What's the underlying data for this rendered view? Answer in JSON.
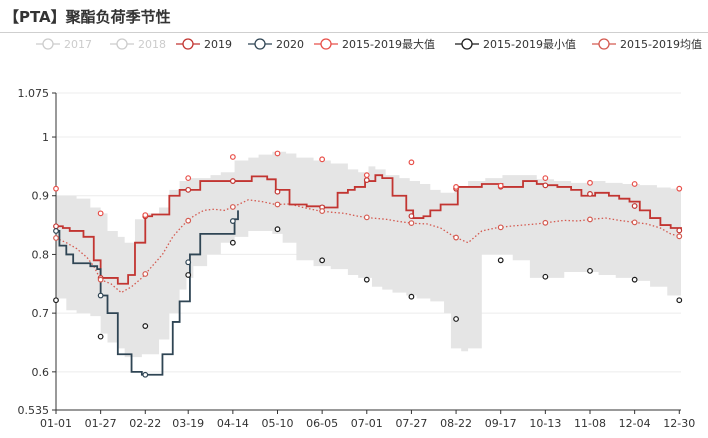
{
  "page_title": "【PTA】聚酯负荷季节性",
  "colors": {
    "c2019": "#c23531",
    "c2020": "#2f4554",
    "max": "#e8504a",
    "min": "#1c1c1c",
    "avg": "#d45a50",
    "band": "#e5e5e5",
    "inactive": "#cccccc"
  },
  "chart_data": {
    "type": "line",
    "title": "【PTA】聚酯负荷季节性",
    "legend_position": "top",
    "ylim": [
      0.535,
      1.075
    ],
    "yticks": [
      0.535,
      0.6,
      0.7,
      0.8,
      0.9,
      1,
      1.075
    ],
    "ytick_labels": [
      "0.535",
      "0.6",
      "0.7",
      "0.8",
      "0.9",
      "1",
      "1.075"
    ],
    "xlim": [
      0,
      364
    ],
    "xticks": [
      0,
      26,
      52,
      77,
      103,
      129,
      155,
      181,
      207,
      233,
      259,
      285,
      311,
      337,
      363
    ],
    "xtick_labels": [
      "01-01",
      "01-27",
      "02-22",
      "03-19",
      "04-14",
      "05-10",
      "06-05",
      "07-01",
      "07-27",
      "08-22",
      "09-17",
      "10-13",
      "11-08",
      "12-04",
      "12-30"
    ],
    "grid": {
      "horizontal": true,
      "vertical": false
    },
    "legend": [
      {
        "name": "2017",
        "active": false
      },
      {
        "name": "2018",
        "active": false
      },
      {
        "name": "2019",
        "active": true
      },
      {
        "name": "2020",
        "active": true
      },
      {
        "name": "2015-2019最大值",
        "active": true
      },
      {
        "name": "2015-2019最小值",
        "active": true
      },
      {
        "name": "2015-2019均值",
        "active": true
      }
    ],
    "series": [
      {
        "name": "2019",
        "kind": "step",
        "x": [
          0,
          4,
          8,
          16,
          22,
          26,
          36,
          42,
          46,
          52,
          56,
          66,
          72,
          80,
          84,
          90,
          96,
          106,
          114,
          123,
          128,
          136,
          146,
          156,
          164,
          170,
          174,
          180,
          186,
          190,
          196,
          204,
          208,
          214,
          218,
          224,
          234,
          248,
          260,
          272,
          280,
          284,
          292,
          300,
          306,
          314,
          322,
          328,
          334,
          340,
          346,
          352,
          358,
          364
        ],
        "values": [
          0.848,
          0.845,
          0.84,
          0.83,
          0.79,
          0.76,
          0.75,
          0.765,
          0.82,
          0.865,
          0.868,
          0.9,
          0.91,
          0.91,
          0.925,
          0.925,
          0.925,
          0.925,
          0.933,
          0.928,
          0.91,
          0.885,
          0.882,
          0.88,
          0.905,
          0.91,
          0.915,
          0.925,
          0.935,
          0.93,
          0.9,
          0.875,
          0.862,
          0.865,
          0.875,
          0.885,
          0.915,
          0.92,
          0.915,
          0.925,
          0.92,
          0.918,
          0.915,
          0.91,
          0.9,
          0.905,
          0.9,
          0.895,
          0.89,
          0.875,
          0.862,
          0.85,
          0.845,
          0.84
        ]
      },
      {
        "name": "2020",
        "kind": "step",
        "x": [
          0,
          2,
          6,
          10,
          16,
          20,
          24,
          26,
          30,
          36,
          44,
          50,
          56,
          62,
          68,
          72,
          78,
          84,
          96,
          104,
          106
        ],
        "values": [
          0.84,
          0.815,
          0.8,
          0.785,
          0.785,
          0.78,
          0.775,
          0.73,
          0.7,
          0.63,
          0.6,
          0.595,
          0.595,
          0.63,
          0.685,
          0.72,
          0.8,
          0.835,
          0.835,
          0.86,
          0.875
        ]
      },
      {
        "name": "2015-2019最大值",
        "kind": "points",
        "x": [
          0,
          26,
          52,
          77,
          103,
          129,
          155,
          181,
          207,
          233,
          259,
          285,
          311,
          337,
          363
        ],
        "values": [
          0.912,
          0.87,
          0.867,
          0.93,
          0.966,
          0.972,
          0.962,
          0.935,
          0.957,
          0.915,
          0.917,
          0.93,
          0.922,
          0.92,
          0.912
        ]
      },
      {
        "name": "2015-2019最小值",
        "kind": "points",
        "x": [
          0,
          26,
          52,
          77,
          103,
          129,
          155,
          181,
          207,
          233,
          259,
          285,
          311,
          337,
          363
        ],
        "values": [
          0.722,
          0.66,
          0.678,
          0.765,
          0.82,
          0.843,
          0.79,
          0.757,
          0.728,
          0.69,
          0.79,
          0.762,
          0.772,
          0.757,
          0.722
        ]
      },
      {
        "name": "2015-2019均值",
        "kind": "dotted",
        "x": [
          0,
          6,
          12,
          18,
          22,
          26,
          32,
          38,
          44,
          50,
          56,
          62,
          68,
          74,
          80,
          86,
          92,
          98,
          104,
          112,
          120,
          128,
          136,
          144,
          152,
          160,
          168,
          176,
          184,
          192,
          200,
          208,
          216,
          224,
          232,
          236,
          240,
          248,
          256,
          264,
          272,
          280,
          288,
          296,
          304,
          312,
          320,
          328,
          336,
          344,
          352,
          358,
          364
        ],
        "values": [
          0.828,
          0.82,
          0.81,
          0.795,
          0.78,
          0.757,
          0.75,
          0.735,
          0.745,
          0.76,
          0.78,
          0.8,
          0.83,
          0.85,
          0.865,
          0.875,
          0.877,
          0.875,
          0.882,
          0.893,
          0.89,
          0.885,
          0.886,
          0.88,
          0.875,
          0.872,
          0.87,
          0.865,
          0.862,
          0.86,
          0.856,
          0.853,
          0.852,
          0.845,
          0.83,
          0.825,
          0.82,
          0.84,
          0.845,
          0.848,
          0.85,
          0.852,
          0.855,
          0.858,
          0.857,
          0.86,
          0.862,
          0.858,
          0.855,
          0.852,
          0.845,
          0.835,
          0.83
        ]
      },
      {
        "name": "band_upper",
        "kind": "band",
        "x": [
          0,
          6,
          12,
          20,
          26,
          30,
          36,
          40,
          46,
          52,
          56,
          60,
          66,
          72,
          78,
          84,
          90,
          96,
          104,
          112,
          118,
          126,
          134,
          140,
          150,
          160,
          170,
          176,
          182,
          186,
          192,
          200,
          206,
          212,
          218,
          224,
          232,
          240,
          250,
          260,
          270,
          280,
          290,
          300,
          310,
          320,
          330,
          340,
          350,
          358,
          364
        ],
        "values": [
          0.9,
          0.9,
          0.895,
          0.88,
          0.87,
          0.84,
          0.83,
          0.82,
          0.86,
          0.87,
          0.87,
          0.88,
          0.91,
          0.925,
          0.93,
          0.93,
          0.935,
          0.94,
          0.96,
          0.965,
          0.97,
          0.975,
          0.972,
          0.965,
          0.96,
          0.955,
          0.945,
          0.94,
          0.95,
          0.945,
          0.935,
          0.93,
          0.925,
          0.92,
          0.91,
          0.905,
          0.915,
          0.925,
          0.93,
          0.935,
          0.935,
          0.928,
          0.925,
          0.922,
          0.925,
          0.922,
          0.92,
          0.918,
          0.914,
          0.912,
          0.91
        ]
      },
      {
        "name": "band_lower",
        "kind": "band",
        "x": [
          0,
          6,
          12,
          20,
          26,
          30,
          36,
          40,
          44,
          50,
          56,
          60,
          66,
          72,
          76,
          80,
          88,
          96,
          104,
          112,
          120,
          126,
          132,
          140,
          150,
          160,
          170,
          176,
          184,
          190,
          196,
          204,
          210,
          218,
          226,
          230,
          236,
          240,
          248,
          256,
          266,
          276,
          286,
          296,
          306,
          316,
          326,
          336,
          346,
          356,
          364
        ],
        "values": [
          0.725,
          0.705,
          0.7,
          0.695,
          0.665,
          0.65,
          0.64,
          0.625,
          0.625,
          0.63,
          0.63,
          0.655,
          0.7,
          0.74,
          0.76,
          0.78,
          0.8,
          0.82,
          0.83,
          0.84,
          0.84,
          0.835,
          0.82,
          0.79,
          0.78,
          0.775,
          0.765,
          0.76,
          0.745,
          0.74,
          0.735,
          0.73,
          0.725,
          0.72,
          0.7,
          0.64,
          0.635,
          0.64,
          0.8,
          0.8,
          0.79,
          0.76,
          0.76,
          0.77,
          0.77,
          0.765,
          0.76,
          0.755,
          0.745,
          0.73,
          0.72
        ]
      }
    ]
  }
}
